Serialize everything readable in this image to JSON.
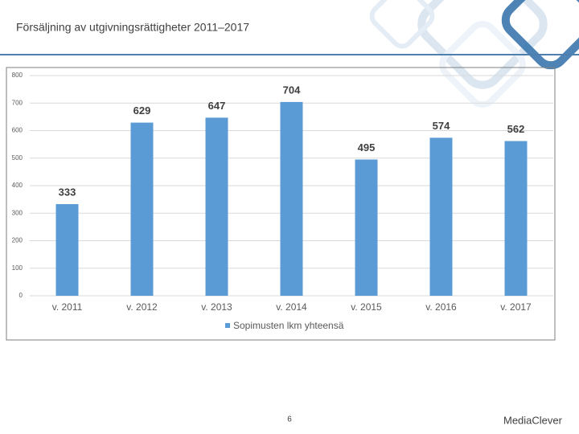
{
  "chart_data": {
    "type": "bar",
    "title": "Försäljning av utgivningsrättigheter 2011–2017",
    "categories": [
      "v. 2011",
      "v. 2012",
      "v. 2013",
      "v. 2014",
      "v. 2015",
      "v. 2016",
      "v. 2017"
    ],
    "series": [
      {
        "name": "Sopimusten lkm yhteensä",
        "color": "#5b9bd5",
        "values": [
          333,
          629,
          647,
          704,
          495,
          574,
          562
        ]
      }
    ],
    "ylim": [
      0,
      800
    ],
    "yticks": [
      0,
      100,
      200,
      300,
      400,
      500,
      600,
      700,
      800
    ],
    "grid": true,
    "legend": "bottom"
  },
  "page_number": "6",
  "logo": "MediaClever"
}
